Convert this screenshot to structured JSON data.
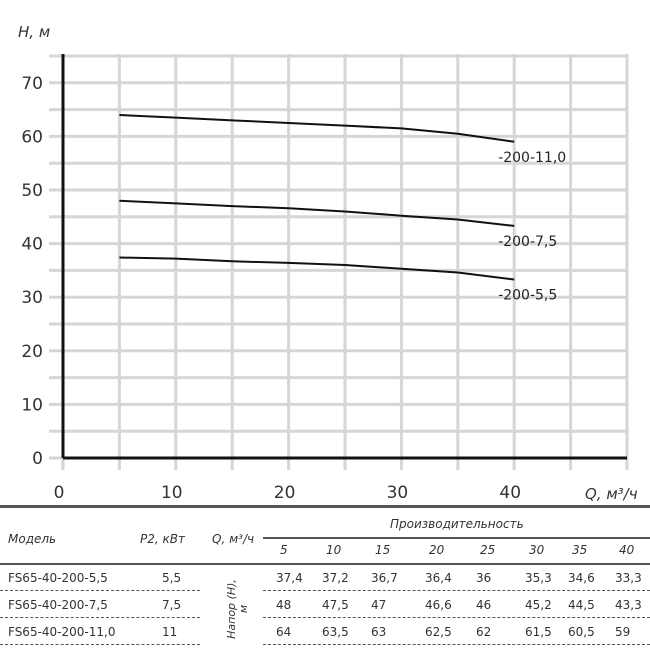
{
  "chart_data": {
    "type": "line",
    "xlabel": "Q, м³/ч",
    "ylabel": "H, м",
    "xlim": [
      0,
      50
    ],
    "ylim": [
      0,
      75
    ],
    "x_ticks": [
      "0",
      "10",
      "20",
      "30",
      "40"
    ],
    "y_ticks": [
      "0",
      "10",
      "20",
      "30",
      "40",
      "50",
      "60",
      "70"
    ],
    "grid": true,
    "x": [
      5,
      10,
      15,
      20,
      25,
      30,
      35,
      40
    ],
    "series": [
      {
        "name": "-200-11,0",
        "values": [
          64,
          63.5,
          63,
          62.5,
          62,
          61.5,
          60.5,
          59
        ]
      },
      {
        "name": "-200-7,5",
        "values": [
          48,
          47.5,
          47,
          46.6,
          46,
          45.2,
          44.5,
          43.3
        ]
      },
      {
        "name": "-200-5,5",
        "values": [
          37.4,
          37.2,
          36.7,
          36.4,
          36,
          35.3,
          34.6,
          33.3
        ]
      }
    ]
  },
  "table": {
    "col_model": "Модель",
    "col_power": "P2, кВт",
    "col_q": "Q, м³/ч",
    "group_header": "Производительность",
    "head_label": "Напор (H), м",
    "q_values": [
      "5",
      "10",
      "15",
      "20",
      "25",
      "30",
      "35",
      "40"
    ],
    "rows": [
      {
        "model": "FS65-40-200-5,5",
        "power": "5,5",
        "values": [
          "37,4",
          "37,2",
          "36,7",
          "36,4",
          "36",
          "35,3",
          "34,6",
          "33,3"
        ]
      },
      {
        "model": "FS65-40-200-7,5",
        "power": "7,5",
        "values": [
          "48",
          "47,5",
          "47",
          "46,6",
          "46",
          "45,2",
          "44,5",
          "43,3"
        ]
      },
      {
        "model": "FS65-40-200-11,0",
        "power": "11",
        "values": [
          "64",
          "63,5",
          "63",
          "62,5",
          "62",
          "61,5",
          "60,5",
          "59"
        ]
      }
    ]
  }
}
